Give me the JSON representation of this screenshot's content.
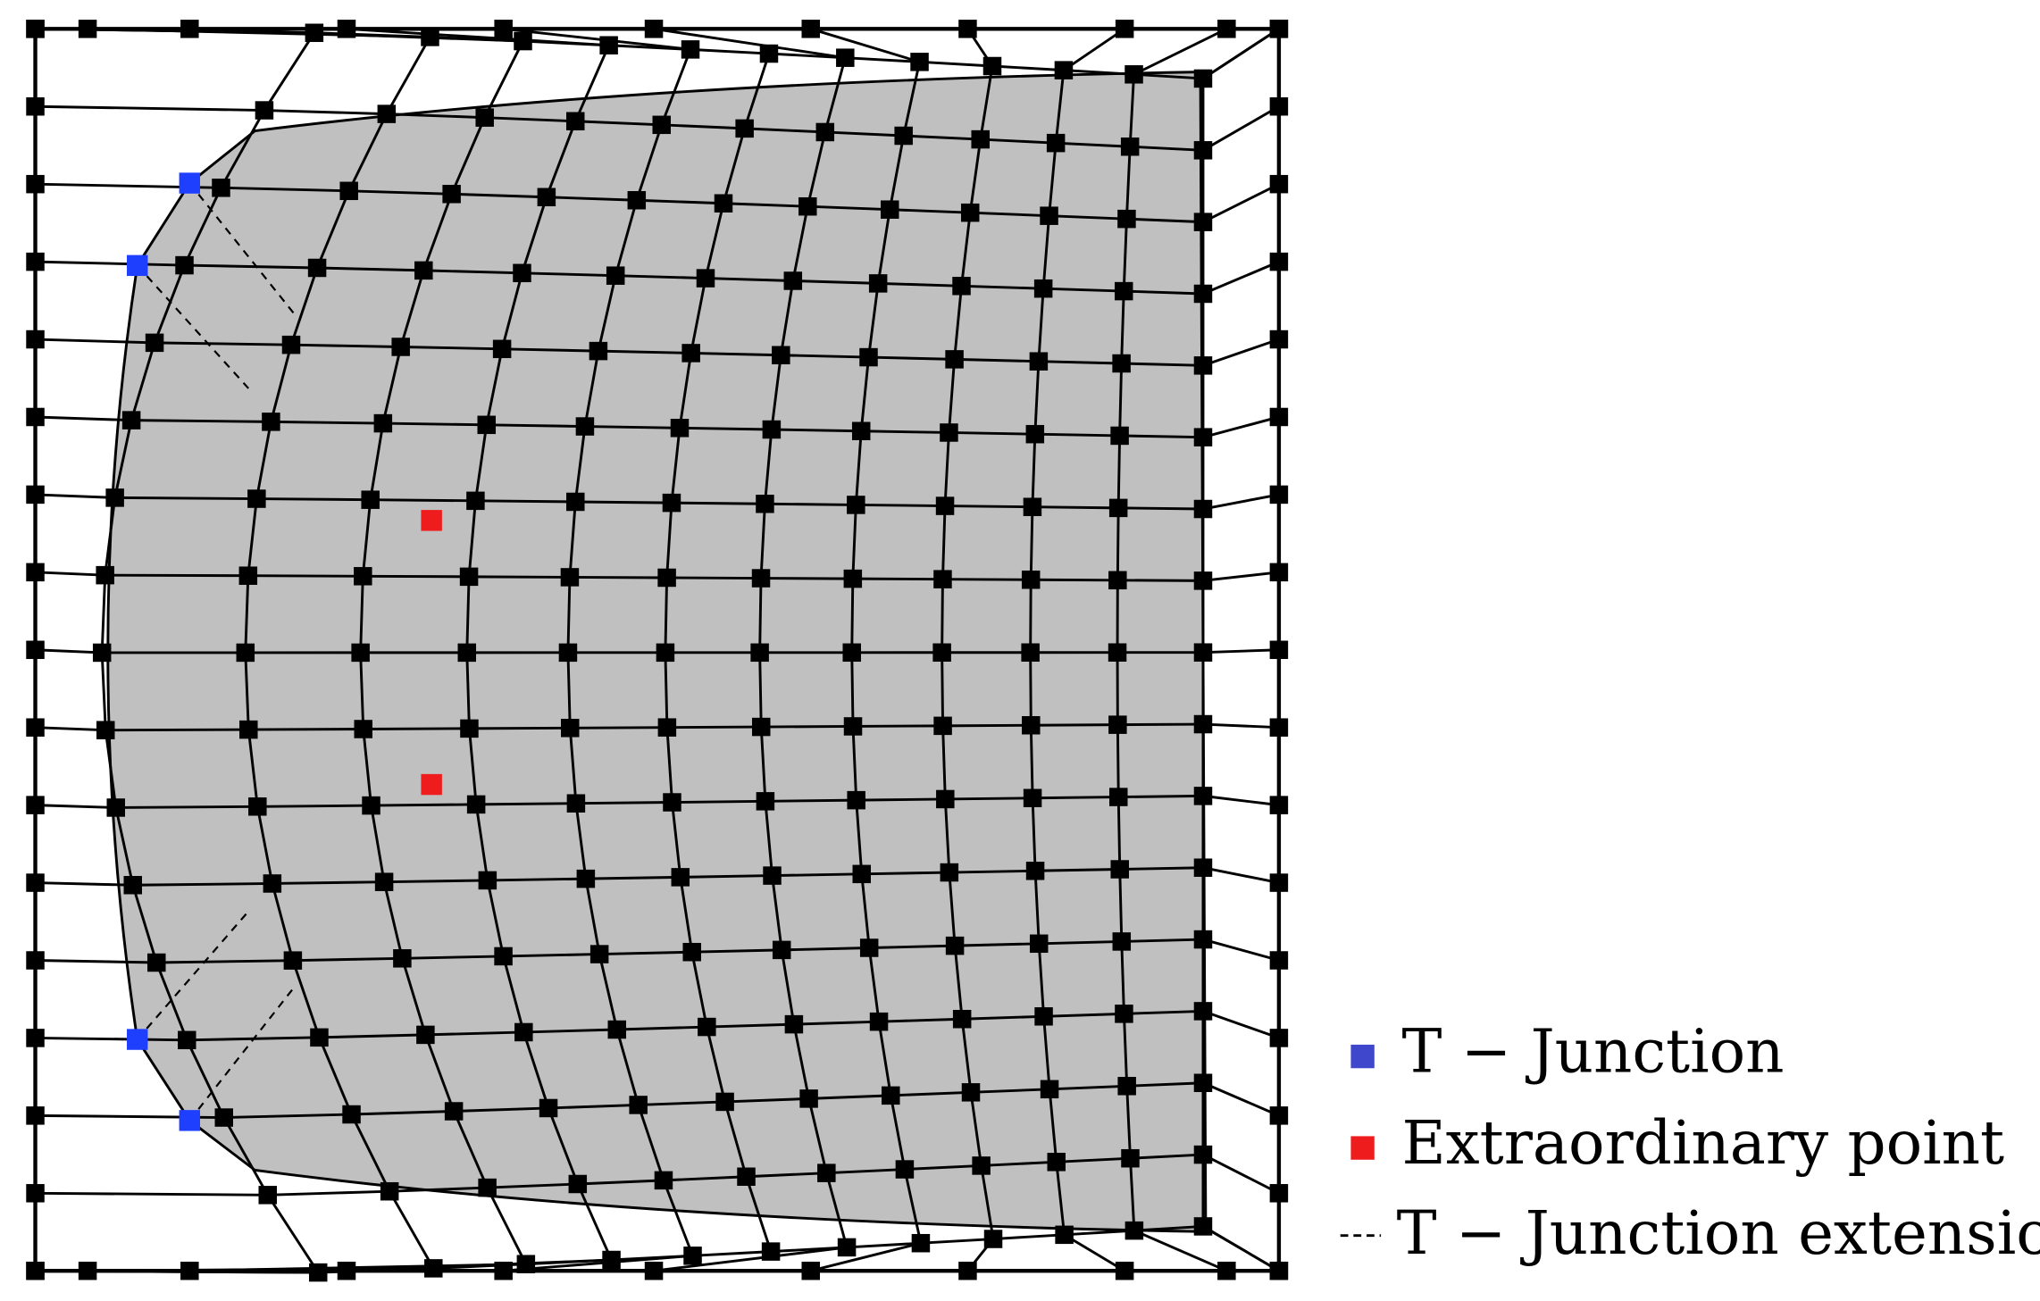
{
  "legend": {
    "items": [
      {
        "label": "T − Junction"
      },
      {
        "label": "Extraordinary point"
      },
      {
        "label": "T − Junction extension"
      }
    ]
  }
}
